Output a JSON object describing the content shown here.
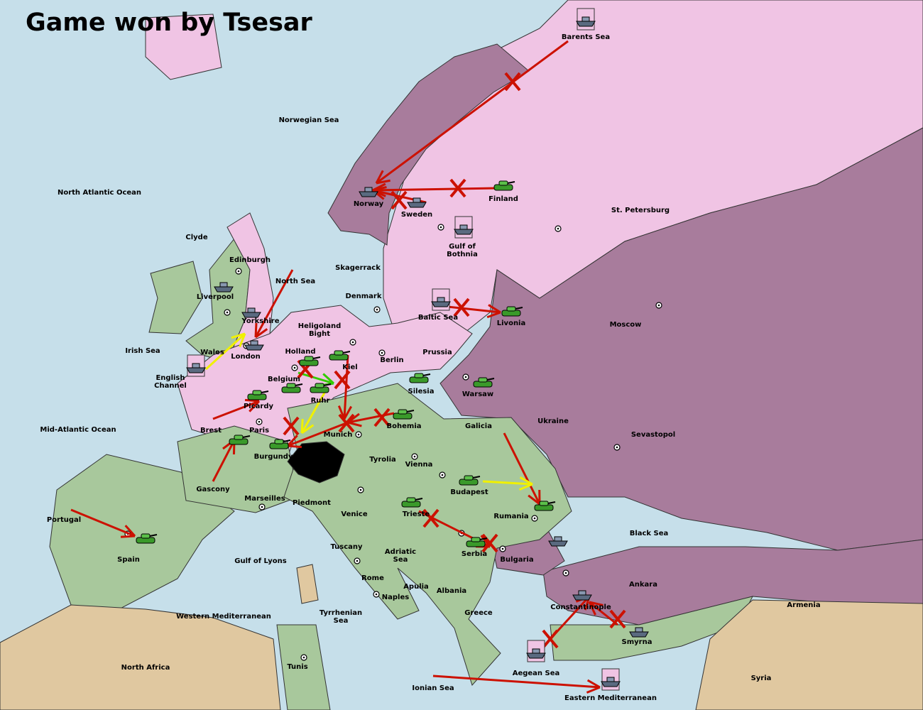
{
  "title": "Game won by Tsesar",
  "colors": {
    "sea": "#c6dfea",
    "pink_power": "#f0c4e4",
    "purple_power": "#a87c9c",
    "green_power": "#a8c89c",
    "neutral": "#e0c8a0",
    "order_arrow": "#cc1100",
    "support_arrow": "#f0f000"
  },
  "provinces": [
    "Barents Sea",
    "Norwegian Sea",
    "North Atlantic Ocean",
    "Norway",
    "Sweden",
    "Finland",
    "St. Petersburg",
    "Gulf of Bothnia",
    "Clyde",
    "Edinburgh",
    "Skagerrack",
    "North Sea",
    "Liverpool",
    "Yorkshire",
    "Denmark",
    "Baltic Sea",
    "Livonia",
    "Moscow",
    "Heligoland Bight",
    "Irish Sea",
    "Wales",
    "London",
    "Holland",
    "Kiel",
    "Berlin",
    "Prussia",
    "English Channel",
    "Belgium",
    "Ruhr",
    "Silesia",
    "Warsaw",
    "Picardy",
    "Ukraine",
    "Brest",
    "Paris",
    "Munich",
    "Bohemia",
    "Galicia",
    "Sevastopol",
    "Mid-Atlantic Ocean",
    "Burgundy",
    "Tyrolia",
    "Vienna",
    "Gascony",
    "Budapest",
    "Marseilles",
    "Piedmont",
    "Venice",
    "Trieste",
    "Rumania",
    "Portugal",
    "Black Sea",
    "Spain",
    "Tuscany",
    "Adriatic Sea",
    "Serbia",
    "Bulgaria",
    "Gulf of Lyons",
    "Rome",
    "Apulia",
    "Ankara",
    "Armenia",
    "Naples",
    "Albania",
    "Constantinople",
    "Western Mediterranean",
    "Tyrrhenian Sea",
    "Greece",
    "Smyrna",
    "North Africa",
    "Tunis",
    "Aegean Sea",
    "Ionian Sea",
    "Eastern Mediterranean",
    "Syria"
  ],
  "units": [
    {
      "type": "fleet",
      "province": "Barents Sea",
      "dislodged": true
    },
    {
      "type": "fleet",
      "province": "Norway"
    },
    {
      "type": "fleet",
      "province": "Sweden"
    },
    {
      "type": "army",
      "province": "Finland"
    },
    {
      "type": "fleet",
      "province": "Gulf of Bothnia",
      "dislodged": true
    },
    {
      "type": "fleet",
      "province": "Baltic Sea",
      "dislodged": true
    },
    {
      "type": "army",
      "province": "Livonia"
    },
    {
      "type": "fleet",
      "province": "Liverpool"
    },
    {
      "type": "fleet",
      "province": "Yorkshire"
    },
    {
      "type": "fleet",
      "province": "London"
    },
    {
      "type": "fleet",
      "province": "English Channel",
      "dislodged": true
    },
    {
      "type": "army",
      "province": "Kiel"
    },
    {
      "type": "army",
      "province": "Holland"
    },
    {
      "type": "army",
      "province": "Belgium"
    },
    {
      "type": "army",
      "province": "Ruhr"
    },
    {
      "type": "army",
      "province": "Silesia"
    },
    {
      "type": "army",
      "province": "Warsaw"
    },
    {
      "type": "army",
      "province": "Picardy"
    },
    {
      "type": "army",
      "province": "Paris"
    },
    {
      "type": "army",
      "province": "Burgundy"
    },
    {
      "type": "army",
      "province": "Bohemia"
    },
    {
      "type": "army",
      "province": "Budapest"
    },
    {
      "type": "army",
      "province": "Rumania"
    },
    {
      "type": "army",
      "province": "Spain"
    },
    {
      "type": "army",
      "province": "Trieste"
    },
    {
      "type": "army",
      "province": "Serbia"
    },
    {
      "type": "fleet",
      "province": "Black Sea"
    },
    {
      "type": "fleet",
      "province": "Constantinople"
    },
    {
      "type": "fleet",
      "province": "Smyrna"
    },
    {
      "type": "fleet",
      "province": "Aegean Sea",
      "dislodged": true
    },
    {
      "type": "fleet",
      "province": "Eastern Mediterranean",
      "dislodged": true
    }
  ]
}
